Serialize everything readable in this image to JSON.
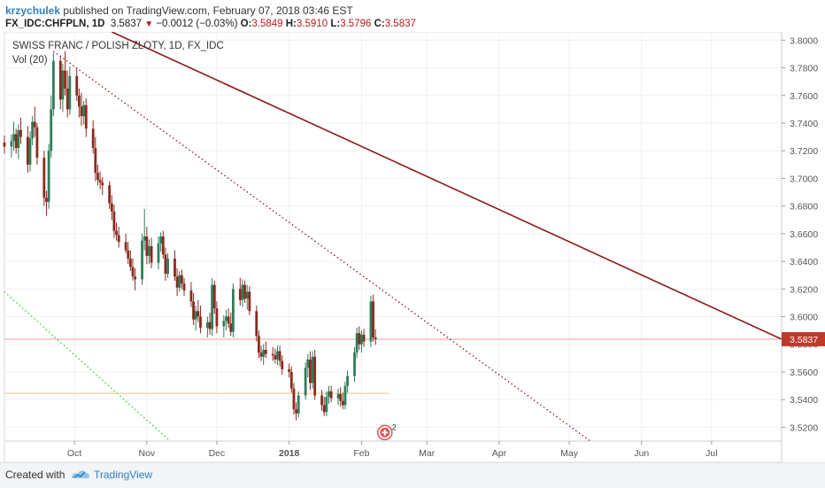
{
  "header": {
    "author": "krzychulek",
    "published": " published on TradingView.com, February 07, 2018 03:46 EST",
    "symbol": "FX_IDC:CHFPLN, 1D",
    "last": "3.5837",
    "change": "−0.0012 (−0.03%)",
    "o_label": "O:",
    "o": "3.5849",
    "h_label": "H:",
    "h": "3.5910",
    "l_label": "L:",
    "l": "3.5796",
    "c_label": "C:",
    "c": "3.5837"
  },
  "legend": {
    "title": "SWISS FRANC / POLISH ZLOTY, 1D, FX_IDC",
    "volume": "Vol (20)"
  },
  "footer": {
    "created_with": "Created with",
    "brand": "TradingView"
  },
  "colors": {
    "down": "#8b2a1e",
    "up": "#2e7d5b",
    "trend": "#8b1a1a",
    "green_line": "#33cc33",
    "price_line": "#e8a090",
    "horizontal": "#f2c08c"
  },
  "chart_data": {
    "type": "candlestick",
    "title": "SWISS FRANC / POLISH ZLOTY, 1D, FX_IDC",
    "x_range": [
      "2017-09-01",
      "2018-07-31"
    ],
    "y_range": [
      3.51,
      3.806
    ],
    "yticks": [
      "3.5200",
      "3.5400",
      "3.5600",
      "3.5800",
      "3.6000",
      "3.6200",
      "3.6400",
      "3.6600",
      "3.6800",
      "3.7000",
      "3.7200",
      "3.7400",
      "3.7600",
      "3.7800",
      "3.8000"
    ],
    "xticks": [
      {
        "label": "Oct",
        "date": "2017-10-01"
      },
      {
        "label": "Nov",
        "date": "2017-11-01"
      },
      {
        "label": "Dec",
        "date": "2017-12-01"
      },
      {
        "label": "2018",
        "date": "2018-01-01"
      },
      {
        "label": "Feb",
        "date": "2018-02-01"
      },
      {
        "label": "Mar",
        "date": "2018-03-01"
      },
      {
        "label": "Apr",
        "date": "2018-04-01"
      },
      {
        "label": "May",
        "date": "2018-05-01"
      },
      {
        "label": "Jun",
        "date": "2018-06-01"
      },
      {
        "label": "Jul",
        "date": "2018-07-01"
      }
    ],
    "last_price_label": "3.5837",
    "last_price": 3.5837,
    "horizontal_line": {
      "price": 3.5445,
      "from": "2017-09-01",
      "to": "2018-02-13"
    },
    "trendlines": [
      {
        "style": "solid",
        "p1": {
          "date": "2017-10-17",
          "price": 3.806
        },
        "p2": {
          "date": "2018-07-31",
          "price": 3.5837
        }
      },
      {
        "style": "dotted",
        "p1": {
          "date": "2017-09-22",
          "price": 3.792
        },
        "p2": {
          "date": "2018-05-10",
          "price": 3.51
        }
      },
      {
        "style": "dotted",
        "p1": {
          "date": "2017-09-01",
          "price": 3.618
        },
        "p2": {
          "date": "2017-11-11",
          "price": 3.51
        }
      }
    ],
    "event_marker": {
      "date": "2018-02-11",
      "price": 3.52,
      "count": "2"
    },
    "candles": [
      {
        "d": "2017-09-01",
        "o": 3.726,
        "h": 3.731,
        "l": 3.718,
        "c": 3.723
      },
      {
        "d": "2017-09-04",
        "o": 3.723,
        "h": 3.732,
        "l": 3.715,
        "c": 3.727
      },
      {
        "d": "2017-09-05",
        "o": 3.727,
        "h": 3.741,
        "l": 3.72,
        "c": 3.732
      },
      {
        "d": "2017-09-06",
        "o": 3.732,
        "h": 3.736,
        "l": 3.718,
        "c": 3.722
      },
      {
        "d": "2017-09-07",
        "o": 3.722,
        "h": 3.739,
        "l": 3.714,
        "c": 3.735
      },
      {
        "d": "2017-09-08",
        "o": 3.735,
        "h": 3.744,
        "l": 3.725,
        "c": 3.73
      },
      {
        "d": "2017-09-11",
        "o": 3.73,
        "h": 3.738,
        "l": 3.704,
        "c": 3.71
      },
      {
        "d": "2017-09-12",
        "o": 3.71,
        "h": 3.734,
        "l": 3.705,
        "c": 3.729
      },
      {
        "d": "2017-09-13",
        "o": 3.729,
        "h": 3.745,
        "l": 3.724,
        "c": 3.741
      },
      {
        "d": "2017-09-14",
        "o": 3.741,
        "h": 3.752,
        "l": 3.73,
        "c": 3.737
      },
      {
        "d": "2017-09-15",
        "o": 3.737,
        "h": 3.74,
        "l": 3.71,
        "c": 3.715
      },
      {
        "d": "2017-09-18",
        "o": 3.715,
        "h": 3.72,
        "l": 3.68,
        "c": 3.686
      },
      {
        "d": "2017-09-19",
        "o": 3.686,
        "h": 3.691,
        "l": 3.673,
        "c": 3.683
      },
      {
        "d": "2017-09-20",
        "o": 3.683,
        "h": 3.725,
        "l": 3.678,
        "c": 3.72
      },
      {
        "d": "2017-09-21",
        "o": 3.72,
        "h": 3.76,
        "l": 3.715,
        "c": 3.75
      },
      {
        "d": "2017-09-22",
        "o": 3.75,
        "h": 3.791,
        "l": 3.745,
        "c": 3.785
      },
      {
        "d": "2017-09-25",
        "o": 3.785,
        "h": 3.789,
        "l": 3.75,
        "c": 3.757
      },
      {
        "d": "2017-09-26",
        "o": 3.757,
        "h": 3.783,
        "l": 3.748,
        "c": 3.778
      },
      {
        "d": "2017-09-27",
        "o": 3.778,
        "h": 3.792,
        "l": 3.76,
        "c": 3.765
      },
      {
        "d": "2017-09-28",
        "o": 3.765,
        "h": 3.778,
        "l": 3.744,
        "c": 3.75
      },
      {
        "d": "2017-09-29",
        "o": 3.75,
        "h": 3.781,
        "l": 3.746,
        "c": 3.774
      },
      {
        "d": "2017-10-02",
        "o": 3.774,
        "h": 3.78,
        "l": 3.756,
        "c": 3.76
      },
      {
        "d": "2017-10-03",
        "o": 3.76,
        "h": 3.765,
        "l": 3.744,
        "c": 3.752
      },
      {
        "d": "2017-10-04",
        "o": 3.752,
        "h": 3.762,
        "l": 3.738,
        "c": 3.745
      },
      {
        "d": "2017-10-05",
        "o": 3.745,
        "h": 3.756,
        "l": 3.739,
        "c": 3.753
      },
      {
        "d": "2017-10-06",
        "o": 3.753,
        "h": 3.758,
        "l": 3.73,
        "c": 3.736
      },
      {
        "d": "2017-10-09",
        "o": 3.736,
        "h": 3.742,
        "l": 3.718,
        "c": 3.722
      },
      {
        "d": "2017-10-10",
        "o": 3.722,
        "h": 3.73,
        "l": 3.698,
        "c": 3.704
      },
      {
        "d": "2017-10-11",
        "o": 3.704,
        "h": 3.71,
        "l": 3.695,
        "c": 3.699
      },
      {
        "d": "2017-10-12",
        "o": 3.699,
        "h": 3.705,
        "l": 3.692,
        "c": 3.697
      },
      {
        "d": "2017-10-13",
        "o": 3.697,
        "h": 3.701,
        "l": 3.688,
        "c": 3.695
      },
      {
        "d": "2017-10-16",
        "o": 3.695,
        "h": 3.698,
        "l": 3.678,
        "c": 3.682
      },
      {
        "d": "2017-10-17",
        "o": 3.682,
        "h": 3.688,
        "l": 3.67,
        "c": 3.676
      },
      {
        "d": "2017-10-18",
        "o": 3.676,
        "h": 3.681,
        "l": 3.657,
        "c": 3.662
      },
      {
        "d": "2017-10-19",
        "o": 3.662,
        "h": 3.668,
        "l": 3.655,
        "c": 3.659
      },
      {
        "d": "2017-10-20",
        "o": 3.659,
        "h": 3.665,
        "l": 3.65,
        "c": 3.654
      },
      {
        "d": "2017-10-23",
        "o": 3.654,
        "h": 3.66,
        "l": 3.646,
        "c": 3.648
      },
      {
        "d": "2017-10-24",
        "o": 3.648,
        "h": 3.654,
        "l": 3.638,
        "c": 3.642
      },
      {
        "d": "2017-10-25",
        "o": 3.642,
        "h": 3.648,
        "l": 3.633,
        "c": 3.636
      },
      {
        "d": "2017-10-26",
        "o": 3.636,
        "h": 3.642,
        "l": 3.626,
        "c": 3.629
      },
      {
        "d": "2017-10-27",
        "o": 3.629,
        "h": 3.635,
        "l": 3.619,
        "c": 3.627
      },
      {
        "d": "2017-10-30",
        "o": 3.627,
        "h": 3.66,
        "l": 3.623,
        "c": 3.655
      },
      {
        "d": "2017-10-31",
        "o": 3.655,
        "h": 3.678,
        "l": 3.648,
        "c": 3.658
      },
      {
        "d": "2017-11-01",
        "o": 3.658,
        "h": 3.665,
        "l": 3.638,
        "c": 3.644
      },
      {
        "d": "2017-11-02",
        "o": 3.644,
        "h": 3.656,
        "l": 3.638,
        "c": 3.651
      },
      {
        "d": "2017-11-03",
        "o": 3.651,
        "h": 3.657,
        "l": 3.635,
        "c": 3.639
      },
      {
        "d": "2017-11-06",
        "o": 3.639,
        "h": 3.658,
        "l": 3.634,
        "c": 3.653
      },
      {
        "d": "2017-11-07",
        "o": 3.653,
        "h": 3.661,
        "l": 3.647,
        "c": 3.658
      },
      {
        "d": "2017-11-08",
        "o": 3.658,
        "h": 3.662,
        "l": 3.642,
        "c": 3.645
      },
      {
        "d": "2017-11-09",
        "o": 3.645,
        "h": 3.65,
        "l": 3.626,
        "c": 3.631
      },
      {
        "d": "2017-11-10",
        "o": 3.631,
        "h": 3.646,
        "l": 3.628,
        "c": 3.642
      },
      {
        "d": "2017-11-13",
        "o": 3.642,
        "h": 3.648,
        "l": 3.626,
        "c": 3.629
      },
      {
        "d": "2017-11-14",
        "o": 3.629,
        "h": 3.635,
        "l": 3.615,
        "c": 3.621
      },
      {
        "d": "2017-11-15",
        "o": 3.621,
        "h": 3.633,
        "l": 3.618,
        "c": 3.63
      },
      {
        "d": "2017-11-16",
        "o": 3.63,
        "h": 3.634,
        "l": 3.62,
        "c": 3.624
      },
      {
        "d": "2017-11-17",
        "o": 3.624,
        "h": 3.628,
        "l": 3.615,
        "c": 3.619
      },
      {
        "d": "2017-11-20",
        "o": 3.619,
        "h": 3.625,
        "l": 3.607,
        "c": 3.611
      },
      {
        "d": "2017-11-21",
        "o": 3.611,
        "h": 3.617,
        "l": 3.594,
        "c": 3.598
      },
      {
        "d": "2017-11-22",
        "o": 3.598,
        "h": 3.608,
        "l": 3.59,
        "c": 3.604
      },
      {
        "d": "2017-11-23",
        "o": 3.604,
        "h": 3.612,
        "l": 3.596,
        "c": 3.6
      },
      {
        "d": "2017-11-24",
        "o": 3.6,
        "h": 3.608,
        "l": 3.588,
        "c": 3.592
      },
      {
        "d": "2017-11-27",
        "o": 3.592,
        "h": 3.6,
        "l": 3.585,
        "c": 3.596
      },
      {
        "d": "2017-11-28",
        "o": 3.596,
        "h": 3.603,
        "l": 3.587,
        "c": 3.591
      },
      {
        "d": "2017-11-29",
        "o": 3.591,
        "h": 3.628,
        "l": 3.586,
        "c": 3.623
      },
      {
        "d": "2017-11-30",
        "o": 3.623,
        "h": 3.626,
        "l": 3.602,
        "c": 3.606
      },
      {
        "d": "2017-12-01",
        "o": 3.606,
        "h": 3.611,
        "l": 3.588,
        "c": 3.593
      },
      {
        "d": "2017-12-04",
        "o": 3.593,
        "h": 3.601,
        "l": 3.585,
        "c": 3.597
      },
      {
        "d": "2017-12-05",
        "o": 3.597,
        "h": 3.605,
        "l": 3.59,
        "c": 3.6
      },
      {
        "d": "2017-12-06",
        "o": 3.6,
        "h": 3.606,
        "l": 3.592,
        "c": 3.595
      },
      {
        "d": "2017-12-07",
        "o": 3.595,
        "h": 3.603,
        "l": 3.586,
        "c": 3.589
      },
      {
        "d": "2017-12-08",
        "o": 3.589,
        "h": 3.624,
        "l": 3.585,
        "c": 3.62
      },
      {
        "d": "2017-12-11",
        "o": 3.62,
        "h": 3.628,
        "l": 3.608,
        "c": 3.612
      },
      {
        "d": "2017-12-12",
        "o": 3.612,
        "h": 3.627,
        "l": 3.607,
        "c": 3.623
      },
      {
        "d": "2017-12-13",
        "o": 3.623,
        "h": 3.626,
        "l": 3.61,
        "c": 3.613
      },
      {
        "d": "2017-12-14",
        "o": 3.613,
        "h": 3.623,
        "l": 3.605,
        "c": 3.618
      },
      {
        "d": "2017-12-15",
        "o": 3.618,
        "h": 3.622,
        "l": 3.601,
        "c": 3.604
      },
      {
        "d": "2017-12-18",
        "o": 3.604,
        "h": 3.608,
        "l": 3.582,
        "c": 3.586
      },
      {
        "d": "2017-12-19",
        "o": 3.586,
        "h": 3.59,
        "l": 3.57,
        "c": 3.574
      },
      {
        "d": "2017-12-20",
        "o": 3.574,
        "h": 3.579,
        "l": 3.568,
        "c": 3.571
      },
      {
        "d": "2017-12-21",
        "o": 3.571,
        "h": 3.58,
        "l": 3.565,
        "c": 3.576
      },
      {
        "d": "2017-12-22",
        "o": 3.576,
        "h": 3.582,
        "l": 3.57,
        "c": 3.573
      },
      {
        "d": "2017-12-25",
        "o": 3.573,
        "h": 3.578,
        "l": 3.568,
        "c": 3.572
      },
      {
        "d": "2017-12-26",
        "o": 3.572,
        "h": 3.577,
        "l": 3.566,
        "c": 3.569
      },
      {
        "d": "2017-12-27",
        "o": 3.569,
        "h": 3.579,
        "l": 3.565,
        "c": 3.575
      },
      {
        "d": "2017-12-28",
        "o": 3.575,
        "h": 3.579,
        "l": 3.564,
        "c": 3.568
      },
      {
        "d": "2017-12-29",
        "o": 3.568,
        "h": 3.572,
        "l": 3.558,
        "c": 3.562
      },
      {
        "d": "2018-01-01",
        "o": 3.562,
        "h": 3.566,
        "l": 3.556,
        "c": 3.56
      },
      {
        "d": "2018-01-02",
        "o": 3.56,
        "h": 3.564,
        "l": 3.545,
        "c": 3.548
      },
      {
        "d": "2018-01-03",
        "o": 3.548,
        "h": 3.552,
        "l": 3.529,
        "c": 3.533
      },
      {
        "d": "2018-01-04",
        "o": 3.533,
        "h": 3.538,
        "l": 3.525,
        "c": 3.53
      },
      {
        "d": "2018-01-05",
        "o": 3.53,
        "h": 3.546,
        "l": 3.527,
        "c": 3.543
      },
      {
        "d": "2018-01-08",
        "o": 3.543,
        "h": 3.567,
        "l": 3.54,
        "c": 3.563
      },
      {
        "d": "2018-01-09",
        "o": 3.563,
        "h": 3.573,
        "l": 3.556,
        "c": 3.569
      },
      {
        "d": "2018-01-10",
        "o": 3.569,
        "h": 3.575,
        "l": 3.547,
        "c": 3.552
      },
      {
        "d": "2018-01-11",
        "o": 3.552,
        "h": 3.575,
        "l": 3.548,
        "c": 3.571
      },
      {
        "d": "2018-01-12",
        "o": 3.571,
        "h": 3.576,
        "l": 3.54,
        "c": 3.543
      },
      {
        "d": "2018-01-15",
        "o": 3.543,
        "h": 3.547,
        "l": 3.532,
        "c": 3.536
      },
      {
        "d": "2018-01-16",
        "o": 3.536,
        "h": 3.542,
        "l": 3.528,
        "c": 3.531
      },
      {
        "d": "2018-01-17",
        "o": 3.531,
        "h": 3.546,
        "l": 3.528,
        "c": 3.542
      },
      {
        "d": "2018-01-18",
        "o": 3.542,
        "h": 3.55,
        "l": 3.537,
        "c": 3.546
      },
      {
        "d": "2018-01-19",
        "o": 3.546,
        "h": 3.55,
        "l": 3.538,
        "c": 3.541
      },
      {
        "d": "2018-01-22",
        "o": 3.541,
        "h": 3.548,
        "l": 3.536,
        "c": 3.544
      },
      {
        "d": "2018-01-23",
        "o": 3.544,
        "h": 3.549,
        "l": 3.535,
        "c": 3.539
      },
      {
        "d": "2018-01-24",
        "o": 3.539,
        "h": 3.545,
        "l": 3.533,
        "c": 3.536
      },
      {
        "d": "2018-01-25",
        "o": 3.536,
        "h": 3.553,
        "l": 3.533,
        "c": 3.55
      },
      {
        "d": "2018-01-26",
        "o": 3.55,
        "h": 3.561,
        "l": 3.545,
        "c": 3.557
      },
      {
        "d": "2018-01-29",
        "o": 3.557,
        "h": 3.578,
        "l": 3.553,
        "c": 3.574
      },
      {
        "d": "2018-01-30",
        "o": 3.574,
        "h": 3.592,
        "l": 3.57,
        "c": 3.588
      },
      {
        "d": "2018-01-31",
        "o": 3.588,
        "h": 3.593,
        "l": 3.576,
        "c": 3.58
      },
      {
        "d": "2018-02-01",
        "o": 3.58,
        "h": 3.59,
        "l": 3.574,
        "c": 3.587
      },
      {
        "d": "2018-02-02",
        "o": 3.587,
        "h": 3.591,
        "l": 3.578,
        "c": 3.582
      },
      {
        "d": "2018-02-05",
        "o": 3.582,
        "h": 3.615,
        "l": 3.578,
        "c": 3.611
      },
      {
        "d": "2018-02-06",
        "o": 3.611,
        "h": 3.616,
        "l": 3.582,
        "c": 3.5849
      },
      {
        "d": "2018-02-07",
        "o": 3.5849,
        "h": 3.591,
        "l": 3.5796,
        "c": 3.5837
      }
    ]
  }
}
